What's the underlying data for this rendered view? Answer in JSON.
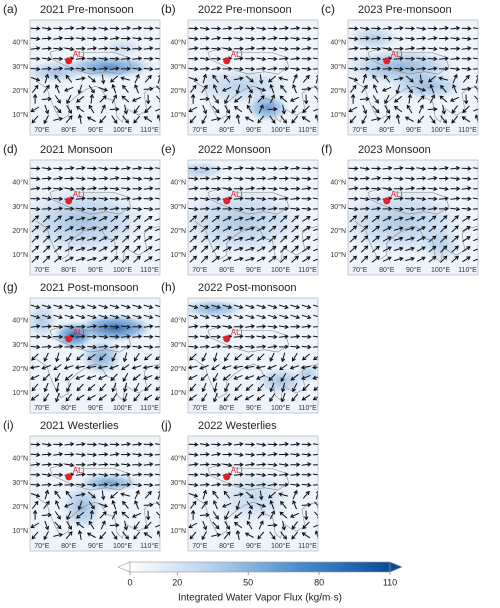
{
  "panels": [
    {
      "label": "(a)",
      "title": "2021 Pre-monsoon"
    },
    {
      "label": "(b)",
      "title": "2022 Pre-monsoon"
    },
    {
      "label": "(c)",
      "title": "2023 Pre-monsoon"
    },
    {
      "label": "(d)",
      "title": "2021 Monsoon"
    },
    {
      "label": "(e)",
      "title": "2022 Monsoon"
    },
    {
      "label": "(f)",
      "title": "2023 Monsoon"
    },
    {
      "label": "(g)",
      "title": "2021 Post-monsoon"
    },
    {
      "label": "(h)",
      "title": "2022 Post-monsoon"
    },
    {
      "label": "(i)",
      "title": "2021 Westerlies"
    },
    {
      "label": "(j)",
      "title": "2022 Westerlies"
    }
  ],
  "station": "ALi",
  "lat_ticks": [
    {
      "value": 10,
      "label": "10°N"
    },
    {
      "value": 20,
      "label": "20°N"
    },
    {
      "value": 30,
      "label": "30°N"
    },
    {
      "value": 40,
      "label": "40°N"
    }
  ],
  "lon_ticks": [
    {
      "value": 70,
      "label": "70°E"
    },
    {
      "value": 80,
      "label": "80°E"
    },
    {
      "value": 90,
      "label": "90°E"
    },
    {
      "value": 100,
      "label": "100°E"
    },
    {
      "value": 110,
      "label": "110°E"
    }
  ],
  "colorbar": {
    "label": "Integrated Water Vapor Flux (kg/m·s)",
    "clim": [
      0,
      110
    ],
    "ticks": [
      0,
      20,
      50,
      80,
      110
    ]
  }
}
